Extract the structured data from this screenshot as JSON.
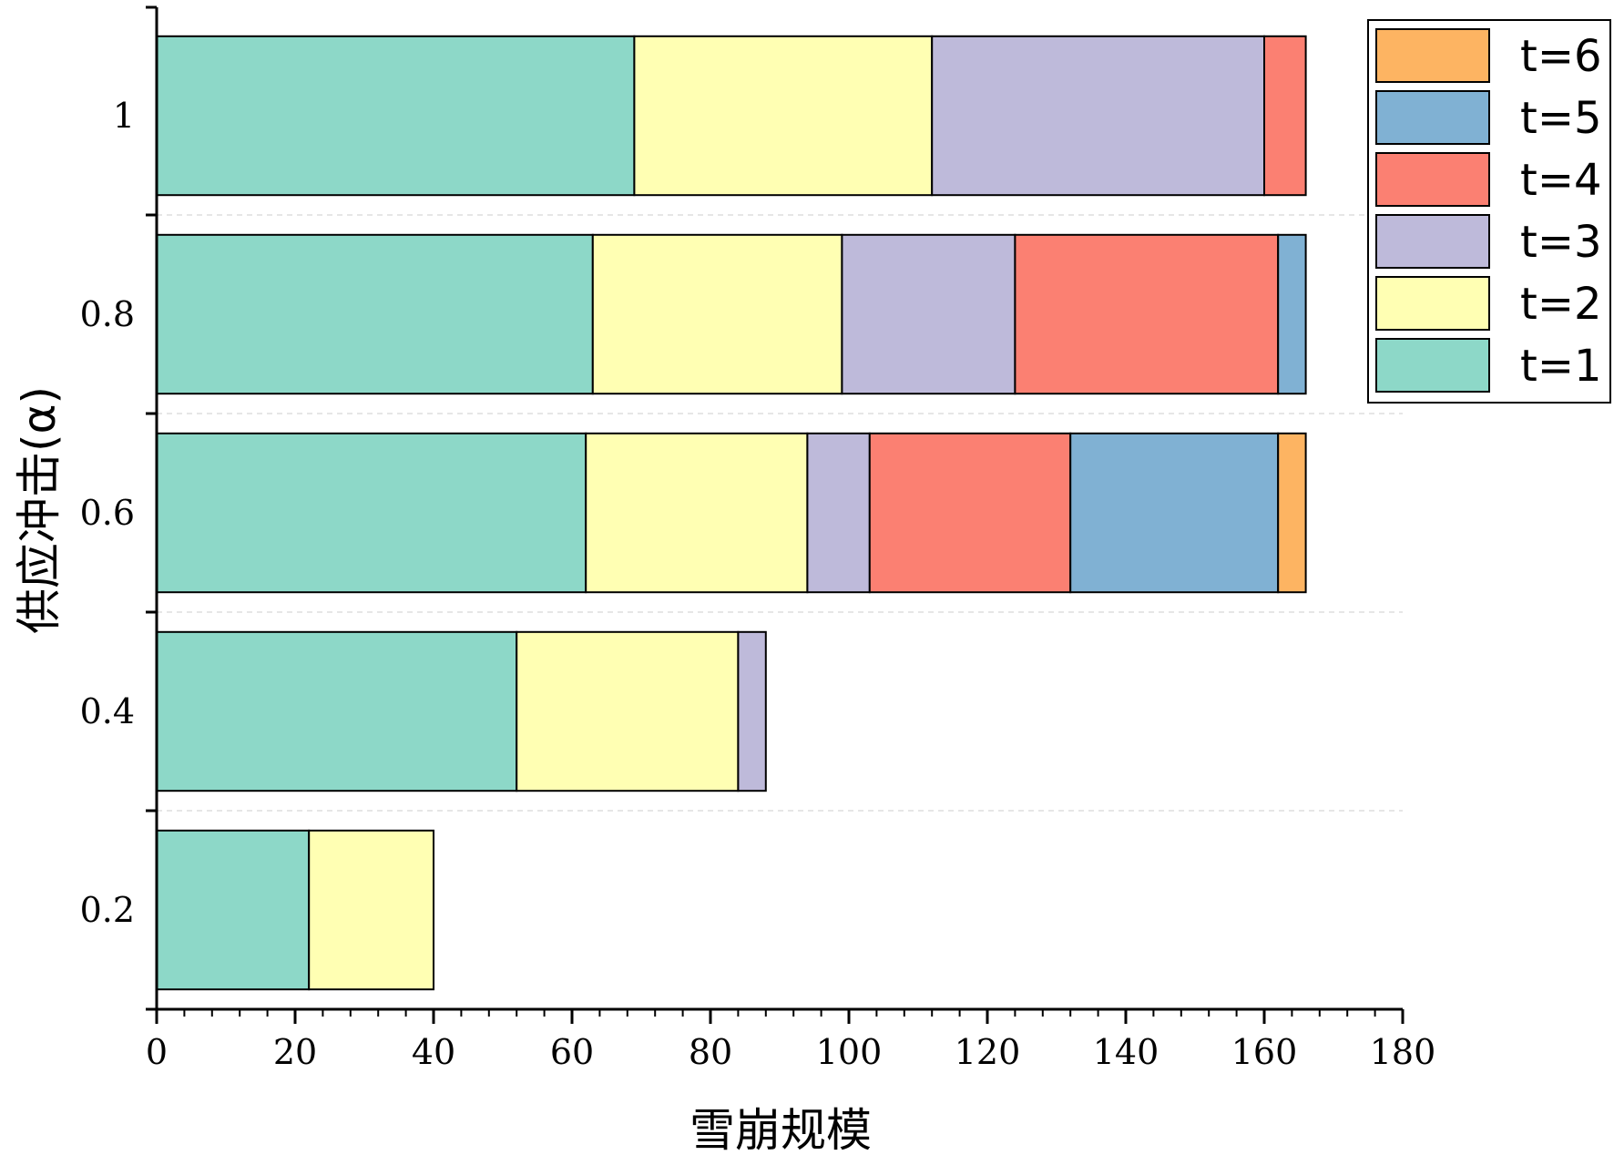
{
  "chart_data": {
    "type": "bar",
    "orientation": "horizontal",
    "stacked": true,
    "title": "",
    "xlabel": "雪崩规模",
    "ylabel": "供应冲击(α)",
    "categories": [
      "1",
      "0.8",
      "0.6",
      "0.4",
      "0.2"
    ],
    "xlim": [
      0,
      180
    ],
    "xticks": [
      0,
      20,
      40,
      60,
      80,
      100,
      120,
      140,
      160,
      180
    ],
    "grid": "dashed horizontal separators between categories",
    "legend": {
      "position": "top-right",
      "order": [
        "t=6",
        "t=5",
        "t=4",
        "t=3",
        "t=2",
        "t=1"
      ]
    },
    "series": [
      {
        "name": "t=1",
        "color": "#8dd8c8",
        "values": [
          69,
          63,
          62,
          52,
          22
        ]
      },
      {
        "name": "t=2",
        "color": "#ffffb3",
        "values": [
          43,
          36,
          32,
          32,
          18
        ]
      },
      {
        "name": "t=3",
        "color": "#bebada",
        "values": [
          48,
          25,
          9,
          4,
          0
        ]
      },
      {
        "name": "t=4",
        "color": "#fb8072",
        "values": [
          6,
          38,
          29,
          0,
          0
        ]
      },
      {
        "name": "t=5",
        "color": "#80b1d3",
        "values": [
          0,
          4,
          30,
          0,
          0
        ]
      },
      {
        "name": "t=6",
        "color": "#fdb462",
        "values": [
          0,
          0,
          4,
          0,
          0
        ]
      }
    ]
  }
}
